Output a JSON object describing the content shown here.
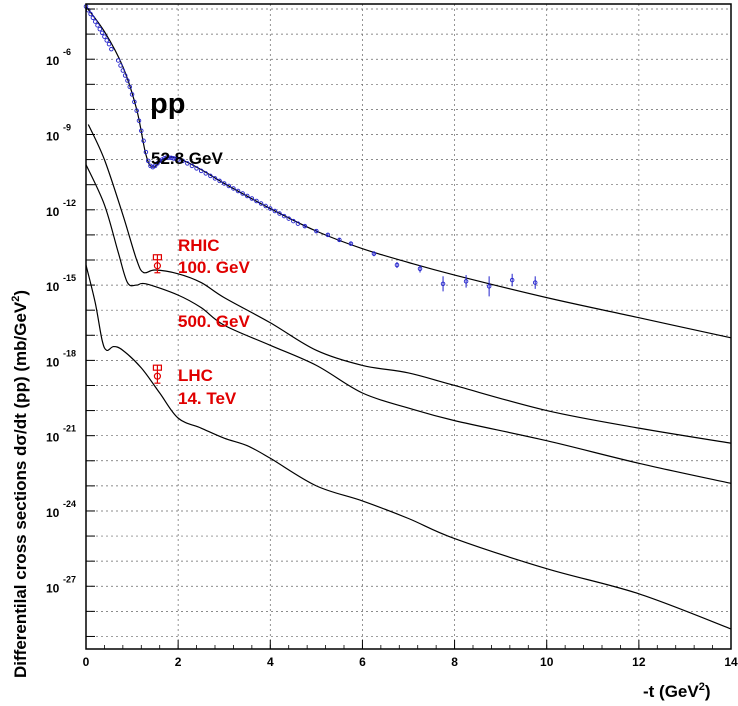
{
  "chart_data": {
    "type": "line",
    "title": "",
    "xlabel": "-t (GeV",
    "xlabel_sup": "2",
    "xlabel_end": ")",
    "ylabel": "Differentilal cross sections dσ/dt (pp) (mb/GeV",
    "ylabel_sup": "2",
    "ylabel_end": ")",
    "xlim": [
      0,
      14
    ],
    "y_log_range": [
      -29.5,
      -3.8
    ],
    "y_scale": "log",
    "grid": true,
    "x_ticks": [
      "0",
      "2",
      "4",
      "6",
      "8",
      "10",
      "12",
      "14"
    ],
    "x_tick_values": [
      0,
      2,
      4,
      6,
      8,
      10,
      12,
      14
    ],
    "y_ticks": [
      {
        "base": "10",
        "exp": "-6",
        "log": -6
      },
      {
        "base": "10",
        "exp": "-9",
        "log": -9
      },
      {
        "base": "10",
        "exp": "-12",
        "log": -12
      },
      {
        "base": "10",
        "exp": "-15",
        "log": -15
      },
      {
        "base": "10",
        "exp": "-18",
        "log": -18
      },
      {
        "base": "10",
        "exp": "-21",
        "log": -21
      },
      {
        "base": "10",
        "exp": "-24",
        "log": -24
      },
      {
        "base": "10",
        "exp": "-27",
        "log": -27
      }
    ],
    "series": [
      {
        "name": "52.8 GeV",
        "color": "#000000",
        "log_y": [
          [
            0,
            -3.9
          ],
          [
            0.4,
            -4.9
          ],
          [
            0.8,
            -6.3
          ],
          [
            1.1,
            -8.0
          ],
          [
            1.3,
            -9.8
          ],
          [
            1.45,
            -10.3
          ],
          [
            1.7,
            -9.95
          ],
          [
            2.0,
            -9.95
          ],
          [
            2.5,
            -10.4
          ],
          [
            3.0,
            -10.95
          ],
          [
            4.0,
            -11.95
          ],
          [
            5.0,
            -12.85
          ],
          [
            6.0,
            -13.55
          ],
          [
            7.0,
            -14.1
          ],
          [
            8.0,
            -14.6
          ],
          [
            10.0,
            -15.5
          ],
          [
            12.0,
            -16.3
          ],
          [
            14.0,
            -17.1
          ]
        ]
      },
      {
        "name": "100. GeV",
        "color": "#000000",
        "log_y": [
          [
            0.05,
            -8.6
          ],
          [
            0.4,
            -10.0
          ],
          [
            0.8,
            -12.2
          ],
          [
            1.1,
            -14.0
          ],
          [
            1.25,
            -14.5
          ],
          [
            1.5,
            -14.4
          ],
          [
            2.0,
            -14.55
          ],
          [
            2.5,
            -14.9
          ],
          [
            3.0,
            -15.5
          ],
          [
            4.0,
            -16.5
          ],
          [
            5.0,
            -17.6
          ],
          [
            6.0,
            -18.2
          ],
          [
            7.0,
            -18.5
          ],
          [
            8.0,
            -19.0
          ],
          [
            10.0,
            -20.0
          ],
          [
            12.0,
            -20.7
          ],
          [
            14.0,
            -21.3
          ]
        ]
      },
      {
        "name": "500. GeV",
        "color": "#000000",
        "log_y": [
          [
            0,
            -10.2
          ],
          [
            0.4,
            -11.8
          ],
          [
            0.7,
            -13.7
          ],
          [
            0.9,
            -14.9
          ],
          [
            1.1,
            -15.0
          ],
          [
            1.3,
            -14.95
          ],
          [
            2.0,
            -15.4
          ],
          [
            2.5,
            -15.9
          ],
          [
            3.0,
            -16.6
          ],
          [
            4.0,
            -17.4
          ],
          [
            5.0,
            -18.2
          ],
          [
            6.0,
            -19.3
          ],
          [
            7.0,
            -19.9
          ],
          [
            8.0,
            -20.4
          ],
          [
            10.0,
            -21.2
          ],
          [
            12.0,
            -22.1
          ],
          [
            14.0,
            -22.9
          ]
        ]
      },
      {
        "name": "14. TeV",
        "color": "#000000",
        "log_y": [
          [
            0,
            -14.2
          ],
          [
            0.2,
            -15.7
          ],
          [
            0.35,
            -17.2
          ],
          [
            0.45,
            -17.6
          ],
          [
            0.6,
            -17.45
          ],
          [
            0.8,
            -17.6
          ],
          [
            1.2,
            -18.3
          ],
          [
            1.6,
            -19.3
          ],
          [
            2.0,
            -20.3
          ],
          [
            2.5,
            -20.7
          ],
          [
            3.0,
            -21.1
          ],
          [
            3.5,
            -21.4
          ],
          [
            4.0,
            -21.9
          ],
          [
            5.0,
            -23.0
          ],
          [
            6.0,
            -23.6
          ],
          [
            7.0,
            -24.3
          ],
          [
            8.0,
            -25.1
          ],
          [
            10.0,
            -26.3
          ],
          [
            12.0,
            -27.3
          ],
          [
            14.0,
            -28.7
          ]
        ]
      }
    ],
    "data_points": {
      "color": "#2222cc",
      "log_y": [
        [
          0.0,
          -3.9
        ],
        [
          0.05,
          -4.05
        ],
        [
          0.1,
          -4.2
        ],
        [
          0.15,
          -4.35
        ],
        [
          0.2,
          -4.5
        ],
        [
          0.25,
          -4.65
        ],
        [
          0.3,
          -4.8
        ],
        [
          0.35,
          -4.95
        ],
        [
          0.4,
          -5.1
        ],
        [
          0.45,
          -5.25
        ],
        [
          0.5,
          -5.4
        ],
        [
          0.55,
          -5.6
        ],
        [
          0.7,
          -6.05
        ],
        [
          0.75,
          -6.25
        ],
        [
          0.8,
          -6.45
        ],
        [
          0.85,
          -6.65
        ],
        [
          0.9,
          -6.85
        ],
        [
          0.95,
          -7.1
        ],
        [
          1.0,
          -7.4
        ],
        [
          1.05,
          -7.7
        ],
        [
          1.1,
          -8.05
        ],
        [
          1.15,
          -8.45
        ],
        [
          1.2,
          -8.85
        ],
        [
          1.25,
          -9.25
        ],
        [
          1.3,
          -9.7
        ],
        [
          1.35,
          -10.05
        ],
        [
          1.4,
          -10.25
        ],
        [
          1.45,
          -10.3
        ],
        [
          1.5,
          -10.25
        ],
        [
          1.55,
          -10.15
        ],
        [
          1.6,
          -10.05
        ],
        [
          1.65,
          -10.0
        ],
        [
          1.7,
          -9.95
        ],
        [
          1.75,
          -9.92
        ],
        [
          1.8,
          -9.92
        ],
        [
          1.85,
          -9.93
        ],
        [
          1.9,
          -9.95
        ],
        [
          1.95,
          -9.97
        ],
        [
          2.0,
          -10.0
        ],
        [
          2.1,
          -10.05
        ],
        [
          2.2,
          -10.15
        ],
        [
          2.3,
          -10.25
        ],
        [
          2.4,
          -10.35
        ],
        [
          2.5,
          -10.45
        ],
        [
          2.6,
          -10.55
        ],
        [
          2.7,
          -10.65
        ],
        [
          2.8,
          -10.75
        ],
        [
          2.9,
          -10.85
        ],
        [
          3.0,
          -10.95
        ],
        [
          3.1,
          -11.05
        ],
        [
          3.2,
          -11.15
        ],
        [
          3.3,
          -11.25
        ],
        [
          3.4,
          -11.35
        ],
        [
          3.5,
          -11.45
        ],
        [
          3.6,
          -11.55
        ],
        [
          3.7,
          -11.65
        ],
        [
          3.8,
          -11.75
        ],
        [
          3.9,
          -11.85
        ],
        [
          4.0,
          -11.95
        ],
        [
          4.1,
          -12.05
        ],
        [
          4.2,
          -12.15
        ],
        [
          4.3,
          -12.25
        ],
        [
          4.4,
          -12.35
        ],
        [
          4.5,
          -12.45
        ],
        [
          4.6,
          -12.55
        ],
        [
          4.75,
          -12.65
        ],
        [
          5.0,
          -12.85
        ],
        [
          5.25,
          -13.0
        ],
        [
          5.5,
          -13.2
        ],
        [
          5.75,
          -13.35
        ],
        [
          6.25,
          -13.75
        ],
        [
          6.75,
          -14.2
        ],
        [
          7.25,
          -14.35
        ],
        [
          7.75,
          -14.95
        ],
        [
          8.25,
          -14.85
        ],
        [
          8.75,
          -15.05
        ],
        [
          9.25,
          -14.8
        ],
        [
          9.75,
          -14.9
        ]
      ],
      "log_err": [
        0,
        0,
        0,
        0,
        0,
        0,
        0,
        0,
        0,
        0,
        0,
        0,
        0,
        0,
        0,
        0,
        0,
        0,
        0,
        0,
        0,
        0,
        0,
        0,
        0,
        0,
        0,
        0,
        0,
        0,
        0,
        0,
        0,
        0,
        0,
        0,
        0,
        0,
        0,
        0,
        0,
        0,
        0,
        0,
        0,
        0,
        0,
        0,
        0,
        0,
        0,
        0,
        0,
        0,
        0,
        0,
        0,
        0,
        0,
        0,
        0,
        0,
        0,
        0,
        0,
        0.05,
        0.05,
        0.06,
        0.07,
        0.08,
        0.1,
        0.12,
        0.15,
        0.3,
        0.25,
        0.4,
        0.25,
        0.25
      ]
    },
    "markers": [
      {
        "name": "RHIC",
        "x": 1.55,
        "log_y": -14.15,
        "color": "#e00000"
      },
      {
        "name": "LHC",
        "x": 1.55,
        "log_y": -18.55,
        "color": "#e00000"
      }
    ],
    "annotations": [
      {
        "text": "pp",
        "color": "#000000"
      },
      {
        "text": "52.8 GeV",
        "color": "#000000"
      },
      {
        "text": "RHIC",
        "color": "#e00000"
      },
      {
        "text": "100. GeV",
        "color": "#e00000"
      },
      {
        "text": "500. GeV",
        "color": "#e00000"
      },
      {
        "text": "LHC",
        "color": "#e00000"
      },
      {
        "text": "14. TeV",
        "color": "#e00000"
      }
    ]
  }
}
